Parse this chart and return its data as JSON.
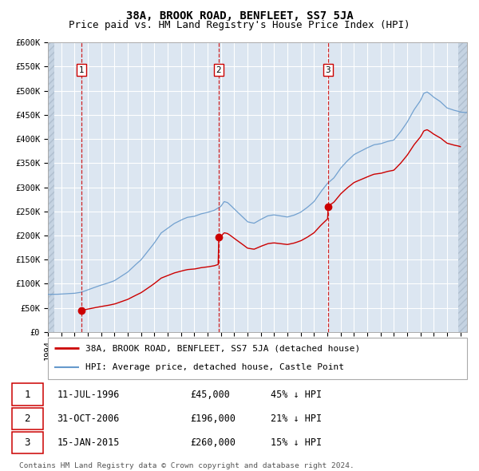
{
  "title": "38A, BROOK ROAD, BENFLEET, SS7 5JA",
  "subtitle": "Price paid vs. HM Land Registry's House Price Index (HPI)",
  "ylim": [
    0,
    600000
  ],
  "yticks": [
    0,
    50000,
    100000,
    150000,
    200000,
    250000,
    300000,
    350000,
    400000,
    450000,
    500000,
    550000,
    600000
  ],
  "ytick_labels": [
    "£0",
    "£50K",
    "£100K",
    "£150K",
    "£200K",
    "£250K",
    "£300K",
    "£350K",
    "£400K",
    "£450K",
    "£500K",
    "£550K",
    "£600K"
  ],
  "xlim_start": 1994.0,
  "xlim_end": 2025.5,
  "bg_color": "#dce6f1",
  "red_line_color": "#cc0000",
  "blue_line_color": "#6699cc",
  "sale1_date": 1996.53,
  "sale1_price": 45000,
  "sale2_date": 2006.83,
  "sale2_price": 196000,
  "sale3_date": 2015.04,
  "sale3_price": 260000,
  "legend_label_red": "38A, BROOK ROAD, BENFLEET, SS7 5JA (detached house)",
  "legend_label_blue": "HPI: Average price, detached house, Castle Point",
  "transaction1": [
    "1",
    "11-JUL-1996",
    "£45,000",
    "45% ↓ HPI"
  ],
  "transaction2": [
    "2",
    "31-OCT-2006",
    "£196,000",
    "21% ↓ HPI"
  ],
  "transaction3": [
    "3",
    "15-JAN-2015",
    "£260,000",
    "15% ↓ HPI"
  ],
  "footer": "Contains HM Land Registry data © Crown copyright and database right 2024.\nThis data is licensed under the Open Government Licence v3.0.",
  "title_fontsize": 10,
  "subtitle_fontsize": 9,
  "tick_fontsize": 7.5,
  "hatch_left_end": 1994.5,
  "hatch_right_start": 2024.83
}
